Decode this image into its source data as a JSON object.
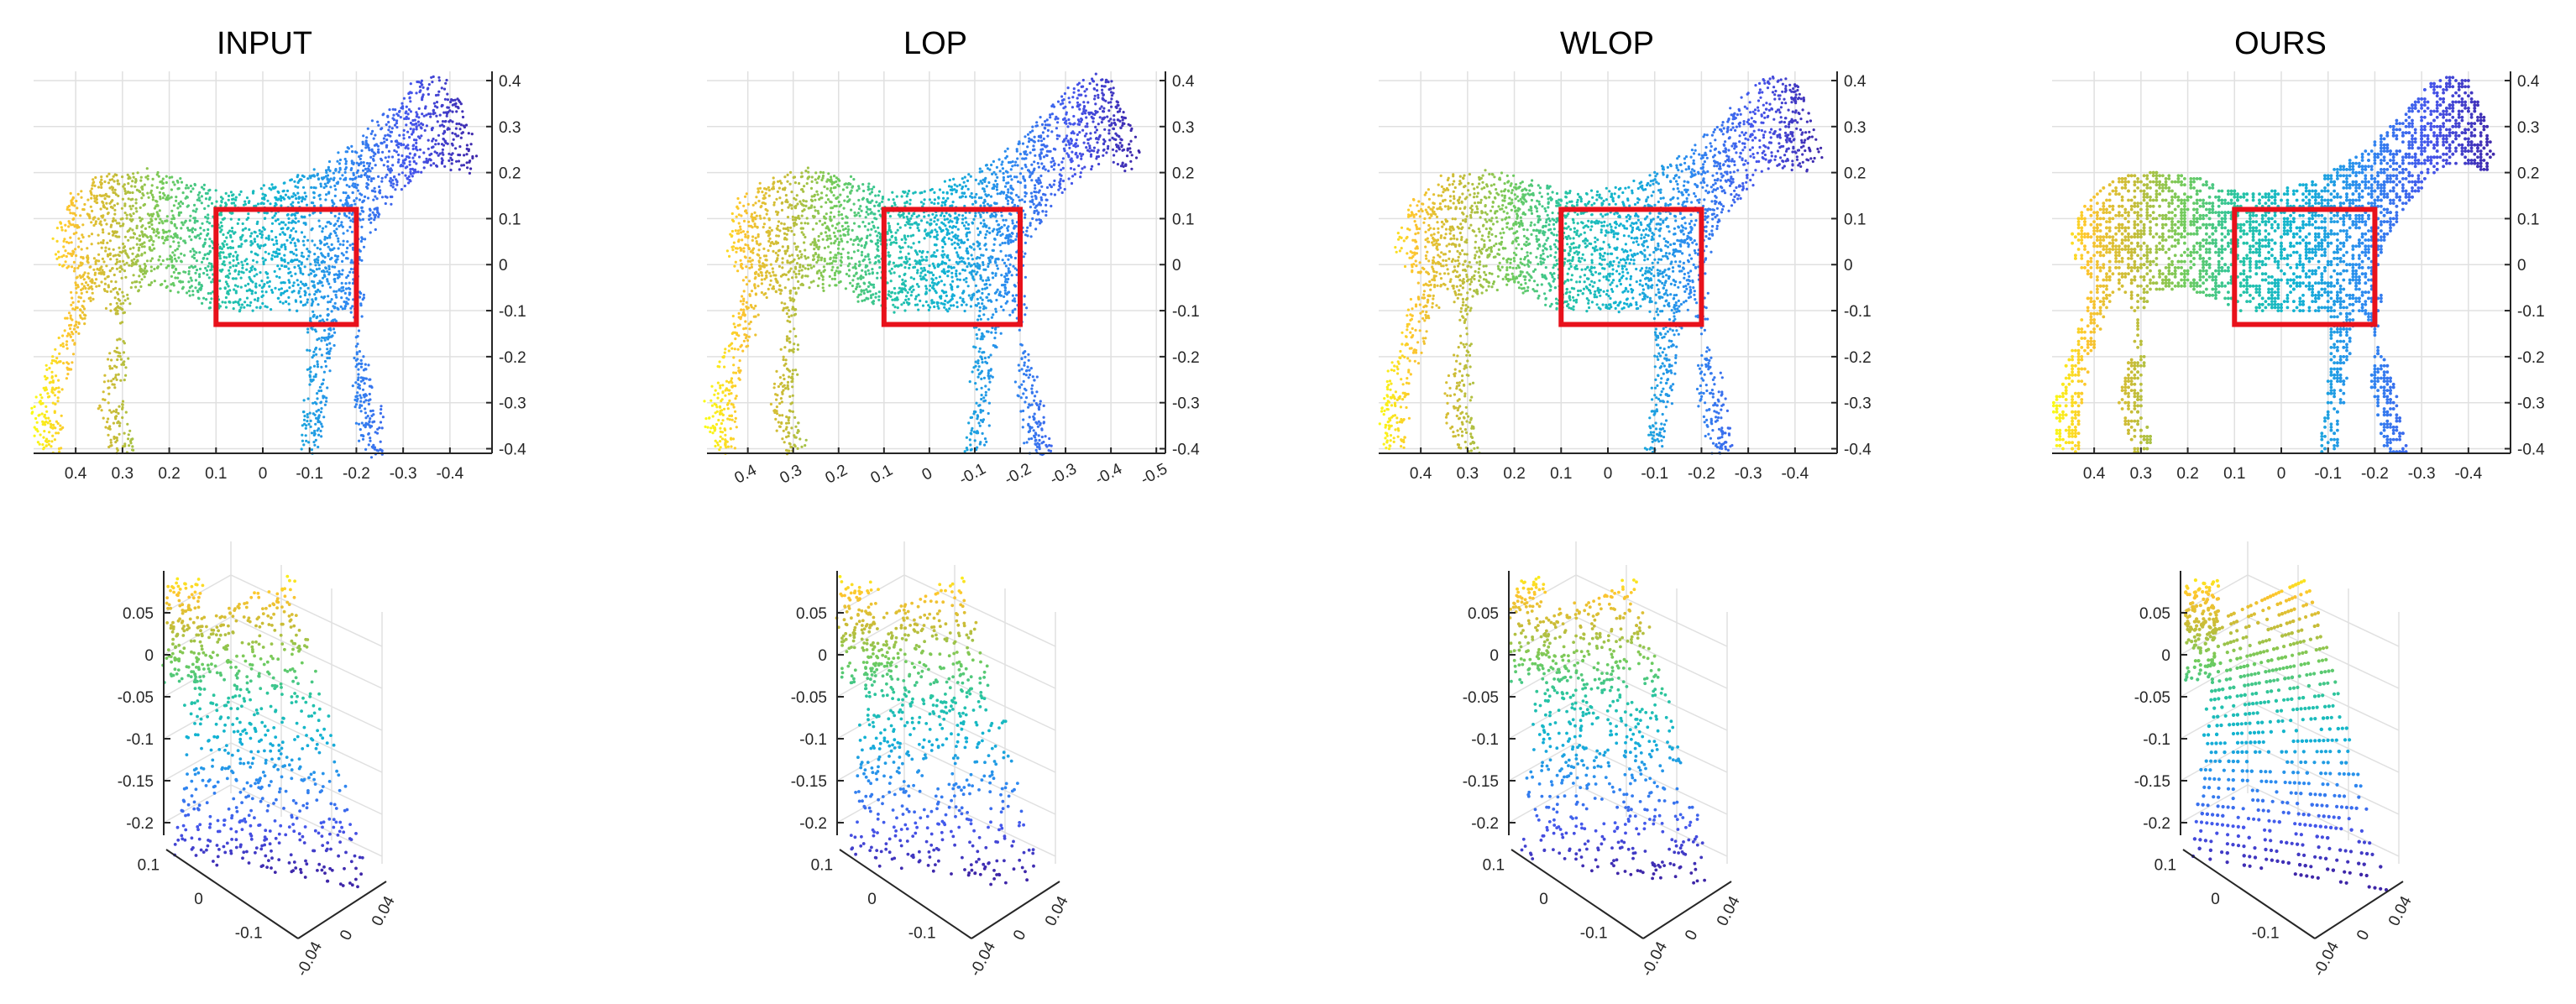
{
  "chart_data": [
    {
      "type": "scatter",
      "title": "INPUT",
      "xticks": [
        "0.4",
        "0.3",
        "0.2",
        "0.1",
        "0",
        "-0.1",
        "-0.2",
        "-0.3",
        "-0.4"
      ],
      "yticks": [
        "0.4",
        "0.3",
        "0.2",
        "0.1",
        "0",
        "-0.1",
        "-0.2",
        "-0.3",
        "-0.4"
      ],
      "xlim": [
        0.49,
        -0.49
      ],
      "ylim": [
        -0.41,
        0.42
      ],
      "highlight_box": {
        "x": [
          0.1,
          -0.2
        ],
        "y": [
          -0.13,
          0.12
        ]
      },
      "point_style": "noisy",
      "colormap": "parula"
    },
    {
      "type": "scatter",
      "title": "LOP",
      "xticks": [
        "0.4",
        "0.3",
        "0.2",
        "0.1",
        "0",
        "-0.1",
        "-0.2",
        "-0.3",
        "-0.4",
        "-0.5"
      ],
      "yticks": [
        "0.4",
        "0.3",
        "0.2",
        "0.1",
        "0",
        "-0.1",
        "-0.2",
        "-0.3",
        "-0.4"
      ],
      "xlim": [
        0.49,
        -0.52
      ],
      "ylim": [
        -0.41,
        0.42
      ],
      "highlight_box": {
        "x": [
          0.1,
          -0.2
        ],
        "y": [
          -0.13,
          0.12
        ]
      },
      "point_style": "noisy",
      "colormap": "parula"
    },
    {
      "type": "scatter",
      "title": "WLOP",
      "xticks": [
        "0.4",
        "0.3",
        "0.2",
        "0.1",
        "0",
        "-0.1",
        "-0.2",
        "-0.3",
        "-0.4"
      ],
      "yticks": [
        "0.4",
        "0.3",
        "0.2",
        "0.1",
        "0",
        "-0.1",
        "-0.2",
        "-0.3",
        "-0.4"
      ],
      "xlim": [
        0.49,
        -0.49
      ],
      "ylim": [
        -0.41,
        0.42
      ],
      "highlight_box": {
        "x": [
          0.1,
          -0.2
        ],
        "y": [
          -0.13,
          0.12
        ]
      },
      "point_style": "noisy",
      "colormap": "parula"
    },
    {
      "type": "scatter",
      "title": "OURS",
      "xticks": [
        "0.4",
        "0.3",
        "0.2",
        "0.1",
        "0",
        "-0.1",
        "-0.2",
        "-0.3",
        "-0.4"
      ],
      "yticks": [
        "0.4",
        "0.3",
        "0.2",
        "0.1",
        "0",
        "-0.1",
        "-0.2",
        "-0.3",
        "-0.4"
      ],
      "xlim": [
        0.49,
        -0.49
      ],
      "ylim": [
        -0.41,
        0.42
      ],
      "highlight_box": {
        "x": [
          0.1,
          -0.2
        ],
        "y": [
          -0.13,
          0.12
        ]
      },
      "point_style": "uniform",
      "colormap": "parula"
    },
    {
      "type": "scatter",
      "view": "3d",
      "zticks": [
        "0.05",
        "0",
        "-0.05",
        "-0.1",
        "-0.15",
        "-0.2"
      ],
      "xticks": [
        "0.1",
        "0",
        "-0.1"
      ],
      "yticks": [
        "-0.04",
        "0",
        "0.04"
      ],
      "point_style": "noisy",
      "colormap": "parula"
    },
    {
      "type": "scatter",
      "view": "3d",
      "zticks": [
        "0.05",
        "0",
        "-0.05",
        "-0.1",
        "-0.15",
        "-0.2"
      ],
      "xticks": [
        "0.1",
        "0",
        "-0.1"
      ],
      "yticks": [
        "-0.04",
        "0",
        "0.04"
      ],
      "point_style": "noisy",
      "colormap": "parula"
    },
    {
      "type": "scatter",
      "view": "3d",
      "zticks": [
        "0.05",
        "0",
        "-0.05",
        "-0.1",
        "-0.15",
        "-0.2"
      ],
      "xticks": [
        "0.1",
        "0",
        "-0.1"
      ],
      "yticks": [
        "-0.04",
        "0",
        "0.04"
      ],
      "point_style": "noisy",
      "colormap": "parula"
    },
    {
      "type": "scatter",
      "view": "3d",
      "zticks": [
        "0.05",
        "0",
        "-0.05",
        "-0.1",
        "-0.15",
        "-0.2"
      ],
      "xticks": [
        "0.1",
        "0",
        "-0.1"
      ],
      "yticks": [
        "-0.04",
        "0",
        "0.04"
      ],
      "point_style": "uniform",
      "colormap": "parula"
    }
  ]
}
